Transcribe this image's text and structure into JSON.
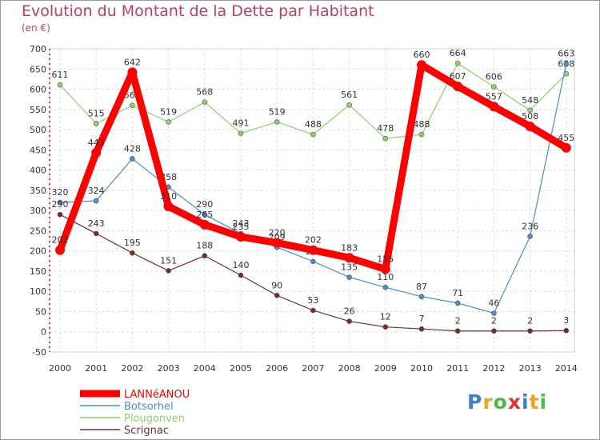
{
  "title": "Evolution du Montant de la Dette par Habitant",
  "unit": "(en €)",
  "logo": "Proxiti",
  "chart_data": {
    "type": "line",
    "x": [
      "2000",
      "2001",
      "2002",
      "2003",
      "2004",
      "2005",
      "2006",
      "2007",
      "2008",
      "2009",
      "2010",
      "2011",
      "2012",
      "2013",
      "2014"
    ],
    "ylim": [
      -50,
      700
    ],
    "yticks": [
      -50,
      0,
      50,
      100,
      150,
      200,
      250,
      300,
      350,
      400,
      450,
      500,
      550,
      600,
      650,
      700
    ],
    "grid": true,
    "legend_position": "bottom-left",
    "series": [
      {
        "name": "Plougonven",
        "color": "#8fd16a",
        "values": [
          611,
          515,
          560,
          519,
          568,
          491,
          519,
          488,
          561,
          478,
          488,
          664,
          606,
          548,
          638
        ]
      },
      {
        "name": "Botsorhel",
        "color": "#4a8fcf",
        "values": [
          320,
          324,
          428,
          358,
          290,
          243,
          209,
          174,
          135,
          110,
          87,
          71,
          46,
          236,
          663
        ]
      },
      {
        "name": "Scrignac",
        "color": "#7a2a2a",
        "values": [
          290,
          243,
          195,
          151,
          188,
          140,
          90,
          53,
          26,
          12,
          7,
          2,
          2,
          2,
          3
        ]
      },
      {
        "name": "LANNéANOU",
        "color": "#ff0000",
        "values": [
          202,
          443,
          642,
          310,
          265,
          235,
          220,
          202,
          183,
          155,
          660,
          607,
          557,
          508,
          455
        ]
      }
    ]
  }
}
